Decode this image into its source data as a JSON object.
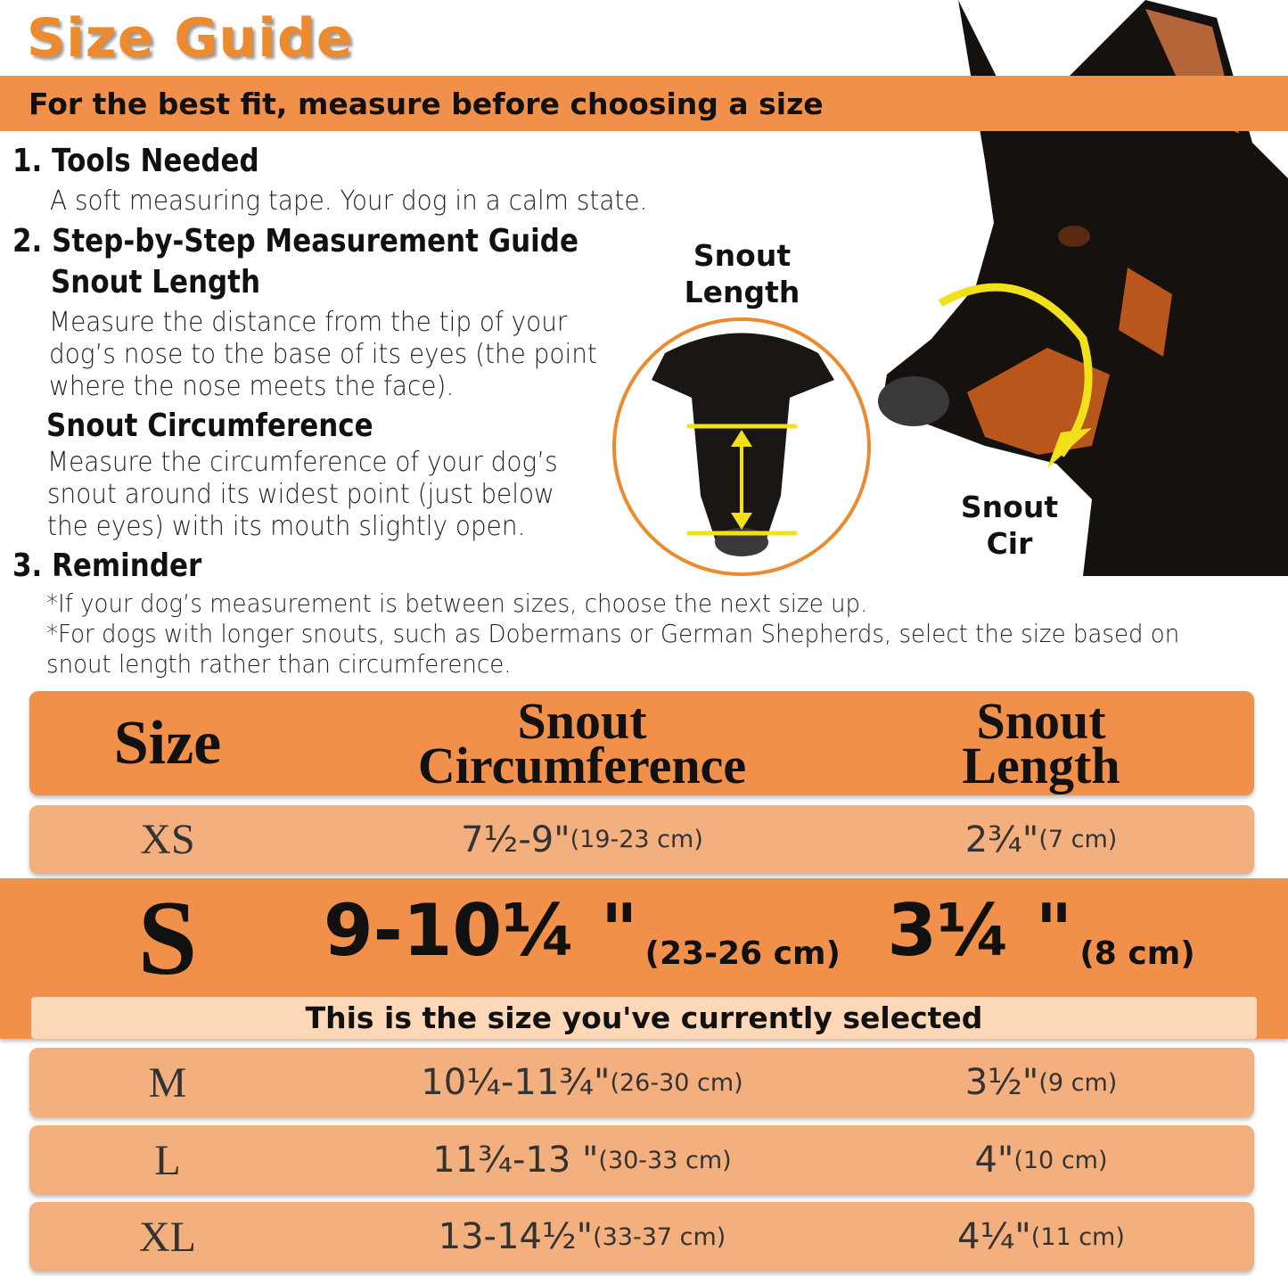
{
  "title": "Size Guide",
  "banner": "For the best fit, measure before choosing a size",
  "sections": {
    "tools_heading": "1. Tools Needed",
    "tools_text": "A soft measuring tape. Your dog in a calm state.",
    "steps_heading": "2. Step-by-Step Measurement Guide",
    "snout_length_heading": "Snout Length",
    "snout_length_text": [
      "Measure the distance from the tip of your",
      "dog’s nose to the base of its eyes (the point",
      "where the nose meets the face)."
    ],
    "snout_circ_heading": "Snout Circumference",
    "snout_circ_text": [
      "Measure the circumference of your dog’s",
      "snout around its widest point (just below",
      "the eyes) with its mouth slightly open."
    ],
    "reminder_heading": "3. Reminder",
    "reminder_text": [
      "*If your dog’s measurement is between sizes, choose the next size up.",
      "*For dogs with longer snouts, such as Dobermans or German Shepherds, select the size based on",
      "snout length rather than circumference."
    ]
  },
  "figures": {
    "snout_length_label": [
      "Snout",
      "Length"
    ],
    "snout_cir_label": [
      "Snout",
      "Cir"
    ]
  },
  "colors": {
    "title": "#EE8A2E",
    "banner": "#F0904A",
    "row": "#F3B07E",
    "selected_caption": "#FCD8B8",
    "marker": "#F2E01B"
  },
  "table": {
    "headers": {
      "size": "Size",
      "circ": [
        "Snout",
        "Circumference"
      ],
      "length": [
        "Snout",
        "Length"
      ]
    },
    "rows": [
      {
        "size": "XS",
        "circ": "7½-9\"",
        "circ_cm": "(19-23 cm)",
        "length": "2¾\"",
        "length_cm": "(7 cm)"
      },
      {
        "size": "S",
        "circ": "9-10¼ \"",
        "circ_cm": "(23-26 cm)",
        "length": "3¼ \"",
        "length_cm": "(8 cm)",
        "selected": true
      },
      {
        "size": "M",
        "circ": "10¼-11¾\"",
        "circ_cm": "(26-30 cm)",
        "length": "3½\"",
        "length_cm": "(9 cm)"
      },
      {
        "size": "L",
        "circ": "11¾-13 \"",
        "circ_cm": "(30-33 cm)",
        "length": "4\"",
        "length_cm": "(10 cm)"
      },
      {
        "size": "XL",
        "circ": "13-14½\"",
        "circ_cm": "(33-37 cm)",
        "length": "4¼\"",
        "length_cm": "(11 cm)"
      }
    ],
    "selected_caption": "This is the size you've currently selected"
  }
}
